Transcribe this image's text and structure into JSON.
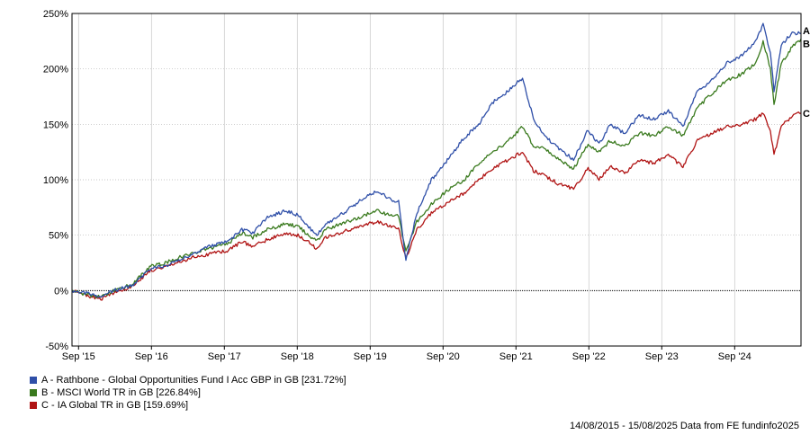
{
  "chart_data": {
    "type": "line",
    "ylim": [
      -50,
      250
    ],
    "yticks": [
      -50,
      0,
      50,
      100,
      150,
      200,
      250
    ],
    "ytick_suffix": "%",
    "xlim": [
      2015.62,
      2025.62
    ],
    "xticks": [
      {
        "x": 2015.71,
        "label": "Sep '15"
      },
      {
        "x": 2016.71,
        "label": "Sep '16"
      },
      {
        "x": 2017.71,
        "label": "Sep '17"
      },
      {
        "x": 2018.71,
        "label": "Sep '18"
      },
      {
        "x": 2019.71,
        "label": "Sep '19"
      },
      {
        "x": 2020.71,
        "label": "Sep '20"
      },
      {
        "x": 2021.71,
        "label": "Sep '21"
      },
      {
        "x": 2022.71,
        "label": "Sep '22"
      },
      {
        "x": 2023.71,
        "label": "Sep '23"
      },
      {
        "x": 2024.71,
        "label": "Sep '24"
      }
    ],
    "grid": true,
    "legend_position": "bottom-left",
    "series": [
      {
        "name": "A - Rathbone - Global Opportunities Fund I Acc GBP in GB [231.72%]",
        "end_label": "A",
        "color": "#2f4fa8",
        "x": [
          2015.62,
          2015.85,
          2016.0,
          2016.2,
          2016.45,
          2016.7,
          2016.9,
          2017.1,
          2017.3,
          2017.5,
          2017.75,
          2017.95,
          2018.1,
          2018.3,
          2018.55,
          2018.72,
          2018.9,
          2018.98,
          2019.1,
          2019.3,
          2019.55,
          2019.8,
          2020.0,
          2020.1,
          2020.2,
          2020.35,
          2020.55,
          2020.8,
          2021.0,
          2021.2,
          2021.4,
          2021.6,
          2021.8,
          2021.95,
          2022.1,
          2022.3,
          2022.5,
          2022.7,
          2022.85,
          2023.0,
          2023.2,
          2023.4,
          2023.6,
          2023.8,
          2024.0,
          2024.2,
          2024.4,
          2024.6,
          2024.8,
          2025.0,
          2025.1,
          2025.2,
          2025.25,
          2025.35,
          2025.5,
          2025.62
        ],
        "values": [
          0,
          -3,
          -5,
          0,
          5,
          20,
          22,
          28,
          33,
          40,
          44,
          55,
          52,
          66,
          72,
          68,
          55,
          50,
          60,
          68,
          80,
          90,
          82,
          80,
          28,
          70,
          100,
          120,
          138,
          150,
          170,
          180,
          192,
          155,
          140,
          128,
          118,
          145,
          132,
          150,
          142,
          158,
          155,
          162,
          148,
          180,
          190,
          205,
          212,
          225,
          240,
          215,
          180,
          222,
          232,
          232
        ]
      },
      {
        "name": "B - MSCI World TR in GB [226.84%]",
        "end_label": "B",
        "color": "#3a7a1e",
        "x": [
          2015.62,
          2015.85,
          2016.0,
          2016.2,
          2016.45,
          2016.7,
          2016.9,
          2017.1,
          2017.3,
          2017.5,
          2017.75,
          2017.95,
          2018.1,
          2018.3,
          2018.55,
          2018.72,
          2018.9,
          2018.98,
          2019.1,
          2019.3,
          2019.55,
          2019.8,
          2020.0,
          2020.1,
          2020.2,
          2020.35,
          2020.55,
          2020.8,
          2021.0,
          2021.2,
          2021.4,
          2021.6,
          2021.8,
          2021.95,
          2022.1,
          2022.3,
          2022.5,
          2022.7,
          2022.85,
          2023.0,
          2023.2,
          2023.4,
          2023.6,
          2023.8,
          2024.0,
          2024.2,
          2024.4,
          2024.6,
          2024.8,
          2025.0,
          2025.1,
          2025.2,
          2025.25,
          2025.35,
          2025.5,
          2025.62
        ],
        "values": [
          0,
          -4,
          -6,
          0,
          6,
          22,
          25,
          30,
          34,
          38,
          42,
          52,
          48,
          55,
          60,
          58,
          48,
          45,
          55,
          60,
          66,
          72,
          68,
          67,
          35,
          62,
          78,
          92,
          100,
          115,
          125,
          135,
          148,
          130,
          128,
          118,
          110,
          132,
          125,
          135,
          130,
          142,
          140,
          148,
          140,
          165,
          178,
          190,
          195,
          205,
          225,
          200,
          168,
          205,
          220,
          227
        ]
      },
      {
        "name": "C - IA Global TR in GB [159.69%]",
        "end_label": "C",
        "color": "#b01414",
        "x": [
          2015.62,
          2015.85,
          2016.0,
          2016.2,
          2016.45,
          2016.7,
          2016.9,
          2017.1,
          2017.3,
          2017.5,
          2017.75,
          2017.95,
          2018.1,
          2018.3,
          2018.55,
          2018.72,
          2018.9,
          2018.98,
          2019.1,
          2019.3,
          2019.55,
          2019.8,
          2020.0,
          2020.1,
          2020.2,
          2020.35,
          2020.55,
          2020.8,
          2021.0,
          2021.2,
          2021.4,
          2021.6,
          2021.8,
          2021.95,
          2022.1,
          2022.3,
          2022.5,
          2022.7,
          2022.85,
          2023.0,
          2023.2,
          2023.4,
          2023.6,
          2023.8,
          2024.0,
          2024.2,
          2024.4,
          2024.6,
          2024.8,
          2025.0,
          2025.1,
          2025.2,
          2025.25,
          2025.35,
          2025.5,
          2025.62
        ],
        "values": [
          0,
          -5,
          -8,
          -2,
          4,
          18,
          22,
          26,
          30,
          33,
          36,
          44,
          40,
          46,
          52,
          50,
          42,
          38,
          48,
          52,
          58,
          62,
          58,
          56,
          28,
          55,
          70,
          80,
          88,
          100,
          110,
          118,
          125,
          108,
          104,
          96,
          92,
          110,
          100,
          112,
          106,
          118,
          115,
          122,
          112,
          135,
          142,
          148,
          150,
          155,
          160,
          145,
          122,
          148,
          158,
          160
        ]
      }
    ]
  },
  "footer": "14/08/2015 - 15/08/2025 Data from FE fundinfo2025"
}
